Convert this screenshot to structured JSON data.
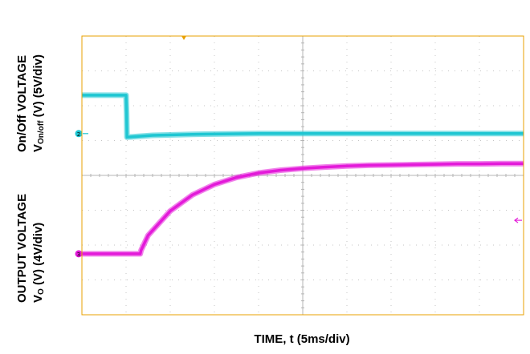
{
  "chart_data": {
    "type": "line",
    "xlabel": "TIME, t (5ms/div)",
    "ylabels": [
      {
        "line1": "On/Off VOLTAGE",
        "line2_main": "V",
        "line2_sub": "On/off",
        "line2_tail": " (V) (5V/div)"
      },
      {
        "line1": "OUTPUT VOLTAGE",
        "line2_main": "V",
        "line2_sub": "O",
        "line2_tail": " (V) (4V/div)"
      }
    ],
    "divisions": {
      "x": 10,
      "y": 8
    },
    "grid": true,
    "series": [
      {
        "color": "#1fc6d2",
        "marker": "2",
        "unit": "divisions",
        "x": [
          0,
          1.0,
          1.01,
          1.02,
          1.6,
          2.5,
          4,
          6,
          8,
          10
        ],
        "y": [
          6.3,
          6.3,
          5.8,
          5.1,
          5.15,
          5.18,
          5.2,
          5.2,
          5.2,
          5.2
        ]
      },
      {
        "color": "#e31ad9",
        "marker": "3",
        "unit": "divisions",
        "x": [
          0,
          1.32,
          1.34,
          1.5,
          2,
          2.5,
          3,
          3.5,
          4,
          4.5,
          5,
          5.5,
          6,
          6.5,
          7,
          7.5,
          8,
          8.5,
          9,
          9.5,
          10
        ],
        "y": [
          1.75,
          1.75,
          1.85,
          2.28,
          2.98,
          3.44,
          3.74,
          3.94,
          4.07,
          4.15,
          4.2,
          4.24,
          4.27,
          4.29,
          4.3,
          4.31,
          4.32,
          4.33,
          4.33,
          4.34,
          4.34
        ]
      }
    ],
    "trigger_colors": {
      "top": "#e8a000",
      "right": "#e31ad9"
    },
    "frame_color": "#e8a000"
  }
}
